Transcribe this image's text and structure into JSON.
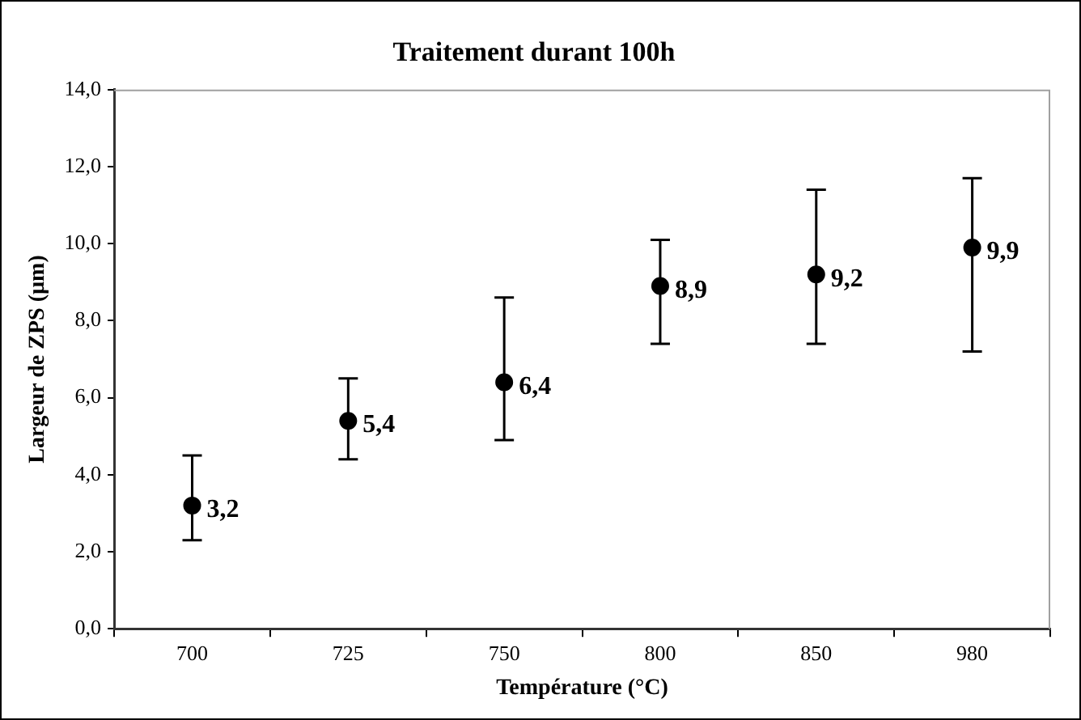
{
  "chart_data": {
    "type": "scatter",
    "title": "Traitement durant 100h",
    "xlabel": "Température (°C)",
    "ylabel": "Largeur de ZPS (µm)",
    "categories": [
      "700",
      "725",
      "750",
      "800",
      "850",
      "980"
    ],
    "values": [
      3.2,
      5.4,
      6.4,
      8.9,
      9.2,
      9.9
    ],
    "value_labels": [
      "3,2",
      "5,4",
      "6,4",
      "8,9",
      "9,2",
      "9,9"
    ],
    "errors": [
      [
        2.3,
        4.5
      ],
      [
        4.4,
        6.5
      ],
      [
        4.9,
        8.6
      ],
      [
        7.4,
        10.1
      ],
      [
        7.4,
        11.4
      ],
      [
        7.2,
        11.7
      ]
    ],
    "color": "#000000",
    "marker": "circle",
    "grid": false,
    "legend": false,
    "ylim": [
      0,
      14
    ],
    "yticks": [
      {
        "value": 0,
        "label": "0,0"
      },
      {
        "value": 2,
        "label": "2,0"
      },
      {
        "value": 4,
        "label": "4,0"
      },
      {
        "value": 6,
        "label": "6,0"
      },
      {
        "value": 8,
        "label": "8,0"
      },
      {
        "value": 10,
        "label": "10,0"
      },
      {
        "value": 12,
        "label": "12,0"
      },
      {
        "value": 14,
        "label": "14,0"
      }
    ]
  }
}
